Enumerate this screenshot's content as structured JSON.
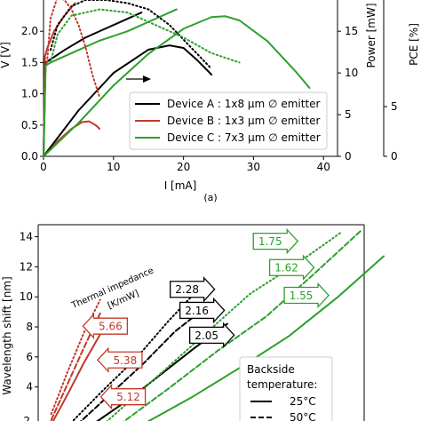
{
  "colors": {
    "a": "#000000",
    "b": "#c0392b",
    "c": "#2ca02c"
  },
  "chart_data": [
    {
      "type": "line",
      "caption": "(a)",
      "xlabel": "I [mA]",
      "ylabel": "V [V]",
      "y2label": "Power [mW]",
      "y3label": "PCE [%]",
      "xlim": [
        0,
        42
      ],
      "ylim": [
        0,
        2.5
      ],
      "xticks": [
        "0",
        "10",
        "20",
        "30",
        "40"
      ],
      "yticks": [
        "0.0",
        "0.5",
        "1.0",
        "1.5",
        "2.0"
      ],
      "y2lim": [
        0,
        18.75
      ],
      "y2ticks": [
        "0",
        "5",
        "10",
        "15"
      ],
      "y3ticks": [
        "0",
        "5"
      ],
      "legend": {
        "placement": "lower-right",
        "entries": [
          {
            "series": "a",
            "label": "Device A : 1x8 μm ∅ emitter"
          },
          {
            "series": "b",
            "label": "Device B : 1x3 μm ∅ emitter"
          },
          {
            "series": "c",
            "label": "Device C : 7x3 μm ∅ emitter"
          }
        ]
      },
      "series": [
        {
          "key": "a",
          "kind": "voltage",
          "style": "solid",
          "x": [
            0,
            0.3,
            1,
            3,
            6,
            10,
            14
          ],
          "y": [
            0,
            1.5,
            1.55,
            1.7,
            1.9,
            2.1,
            2.3
          ]
        },
        {
          "key": "b",
          "kind": "voltage",
          "style": "solid",
          "x": [
            0,
            0.2,
            0.6,
            1.5,
            3,
            4.5
          ],
          "y": [
            0,
            1.6,
            1.75,
            2.0,
            2.25,
            2.45
          ]
        },
        {
          "key": "c",
          "kind": "voltage",
          "style": "solid",
          "x": [
            0,
            0.3,
            1,
            4,
            8,
            12,
            16,
            19
          ],
          "y": [
            0,
            1.45,
            1.5,
            1.65,
            1.85,
            2.0,
            2.2,
            2.35
          ]
        },
        {
          "key": "a",
          "kind": "power",
          "style": "solid",
          "x": [
            0,
            2,
            5,
            10,
            15,
            18,
            20,
            22,
            24
          ],
          "y": [
            0,
            2.2,
            5.5,
            10.0,
            12.8,
            13.3,
            13.0,
            11.5,
            9.8
          ]
        },
        {
          "key": "b",
          "kind": "power",
          "style": "solid",
          "x": [
            0,
            1,
            2,
            4,
            5.5,
            6.5,
            7.5,
            8
          ],
          "y": [
            0,
            0.8,
            1.8,
            3.3,
            4.1,
            4.2,
            3.7,
            3.3
          ]
        },
        {
          "key": "c",
          "kind": "power",
          "style": "solid",
          "x": [
            0,
            5,
            10,
            15,
            20,
            24,
            26,
            28,
            32,
            36,
            38
          ],
          "y": [
            0,
            4.0,
            8.5,
            12.3,
            15.3,
            16.7,
            16.8,
            16.3,
            13.8,
            10.2,
            8.2
          ]
        },
        {
          "key": "a",
          "kind": "pce",
          "style": "dotted",
          "x": [
            1,
            2,
            4,
            6,
            9,
            12,
            15,
            18,
            21,
            24
          ],
          "y": [
            1.7,
            2.1,
            2.4,
            2.5,
            2.5,
            2.45,
            2.35,
            2.1,
            1.75,
            1.4
          ]
        },
        {
          "key": "b",
          "kind": "pce",
          "style": "dotted",
          "x": [
            0.5,
            1,
            2,
            3,
            4,
            5,
            6,
            7,
            8
          ],
          "y": [
            1.5,
            2.2,
            2.55,
            2.5,
            2.35,
            2.1,
            1.75,
            1.3,
            0.95
          ]
        },
        {
          "key": "c",
          "kind": "pce",
          "style": "dotted",
          "x": [
            1,
            2,
            4,
            8,
            12,
            16,
            20,
            24,
            28
          ],
          "y": [
            1.5,
            1.95,
            2.25,
            2.35,
            2.3,
            2.1,
            1.9,
            1.65,
            1.5
          ]
        }
      ]
    },
    {
      "type": "line",
      "xlabel": "",
      "ylabel": "Wavelength shift [nm]",
      "xlim": [
        0,
        1
      ],
      "ylim": [
        1.5,
        14.8
      ],
      "yticks": [
        "4",
        "6",
        "8",
        "10",
        "12",
        "14"
      ],
      "bottom_tick": "2",
      "annotation": "Thermal impedance [K/mW]",
      "legend": {
        "placement": "lower-right",
        "title": "Backside temperature:",
        "entries": [
          {
            "style": "solid",
            "label": "25°C"
          },
          {
            "style": "dashed",
            "label": "50°C"
          }
        ]
      },
      "callouts": [
        {
          "key": "b",
          "label": "5.66",
          "x": 0.17,
          "y": 8.05,
          "points": "left"
        },
        {
          "key": "b",
          "label": "5.38",
          "x": 0.215,
          "y": 5.8,
          "points": "left"
        },
        {
          "key": "b",
          "label": "5.12",
          "x": 0.225,
          "y": 3.35,
          "points": "left"
        },
        {
          "key": "a",
          "label": "2.28",
          "x": 0.405,
          "y": 10.5,
          "points": "right"
        },
        {
          "key": "a",
          "label": "2.16",
          "x": 0.435,
          "y": 9.1,
          "points": "right"
        },
        {
          "key": "a",
          "label": "2.05",
          "x": 0.465,
          "y": 7.45,
          "points": "right"
        },
        {
          "key": "c",
          "label": "1.75",
          "x": 0.66,
          "y": 13.7,
          "points": "right"
        },
        {
          "key": "c",
          "label": "1.62",
          "x": 0.71,
          "y": 11.95,
          "points": "right"
        },
        {
          "key": "c",
          "label": "1.55",
          "x": 0.755,
          "y": 10.1,
          "points": "right"
        }
      ],
      "series": [
        {
          "key": "b",
          "style": "dotted",
          "x": [
            0.04,
            0.09,
            0.14,
            0.19
          ],
          "y": [
            2.2,
            5.0,
            7.6,
            9.8
          ]
        },
        {
          "key": "b",
          "style": "dashed",
          "x": [
            0.04,
            0.09,
            0.14,
            0.19
          ],
          "y": [
            1.8,
            4.2,
            6.6,
            8.9
          ]
        },
        {
          "key": "b",
          "style": "solid",
          "x": [
            0.04,
            0.09,
            0.14,
            0.19
          ],
          "y": [
            1.5,
            3.5,
            5.6,
            7.5
          ]
        },
        {
          "key": "a",
          "style": "dotted",
          "x": [
            0.1,
            0.2,
            0.3,
            0.4,
            0.5
          ],
          "y": [
            1.6,
            3.8,
            5.9,
            8.4,
            10.7
          ]
        },
        {
          "key": "a",
          "style": "dashed",
          "x": [
            0.12,
            0.22,
            0.32,
            0.42,
            0.52
          ],
          "y": [
            1.5,
            3.5,
            5.5,
            7.7,
            9.4
          ]
        },
        {
          "key": "a",
          "style": "solid",
          "x": [
            0.18,
            0.28,
            0.38,
            0.48,
            0.58
          ],
          "y": [
            1.7,
            3.2,
            4.9,
            6.6,
            8.2
          ]
        },
        {
          "key": "c",
          "style": "dotted",
          "x": [
            0.2,
            0.35,
            0.5,
            0.65,
            0.8,
            0.93
          ],
          "y": [
            1.5,
            4.4,
            7.3,
            10.2,
            12.3,
            14.3
          ]
        },
        {
          "key": "c",
          "style": "dashed",
          "x": [
            0.25,
            0.4,
            0.55,
            0.7,
            0.85,
            0.99
          ],
          "y": [
            1.5,
            3.9,
            6.4,
            8.7,
            11.6,
            14.4
          ]
        },
        {
          "key": "c",
          "style": "solid",
          "x": [
            0.32,
            0.47,
            0.62,
            0.77,
            0.92,
            1.06
          ],
          "y": [
            1.5,
            3.3,
            5.3,
            7.4,
            10.0,
            12.7
          ]
        }
      ]
    }
  ]
}
